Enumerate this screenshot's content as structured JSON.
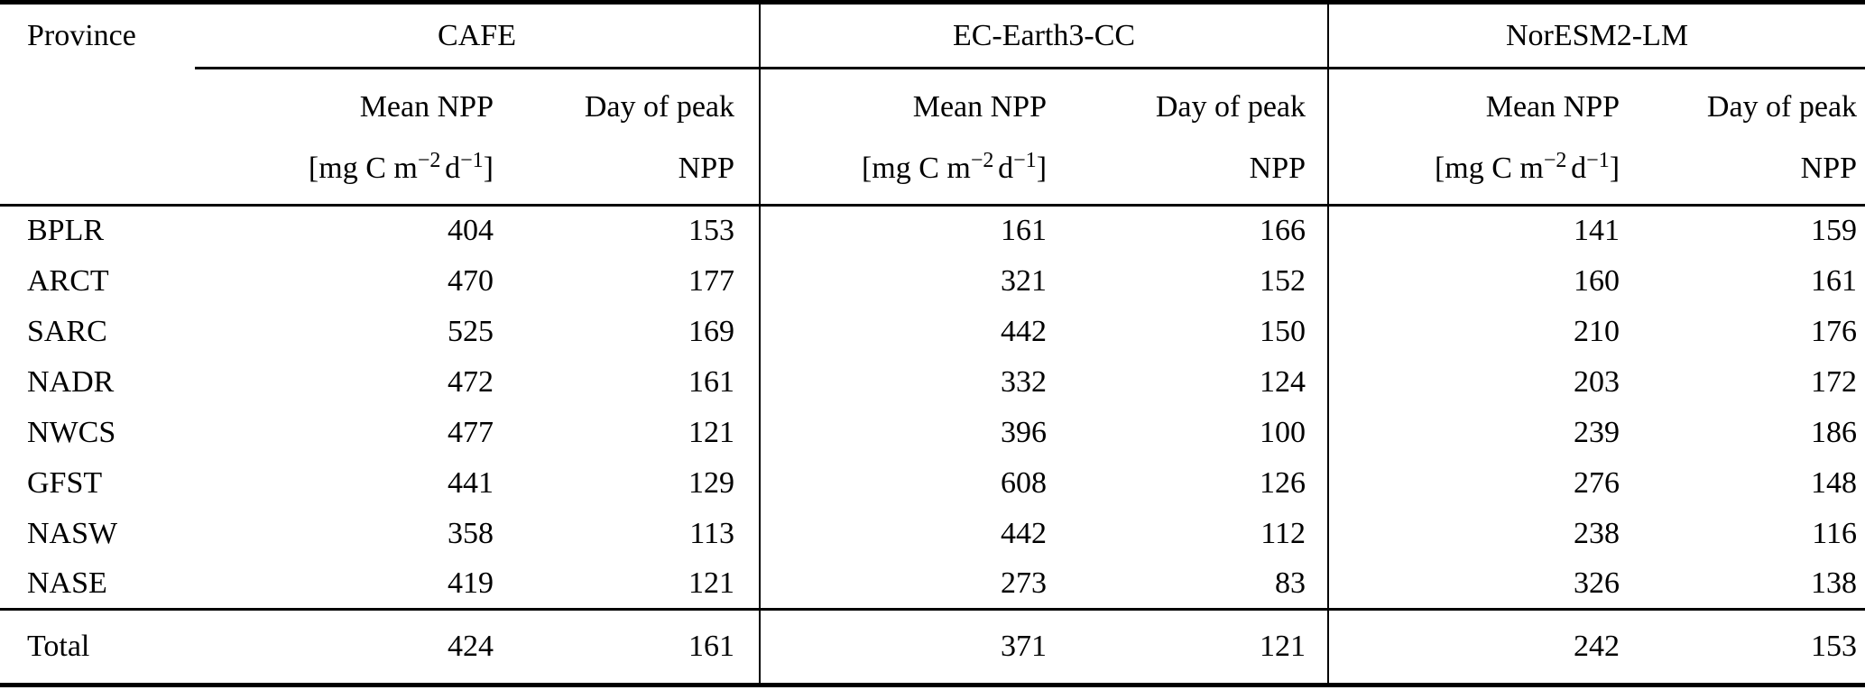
{
  "table": {
    "province_header": "Province",
    "groups": [
      {
        "name": "CAFE"
      },
      {
        "name": "EC-Earth3-CC"
      },
      {
        "name": "NorESM2-LM"
      }
    ],
    "subheader": {
      "mean_label": "Mean NPP",
      "day_peak_line1": "Day of peak",
      "day_peak_line2": "NPP",
      "unit_open": "[mg C m",
      "unit_exp1": "−2",
      "unit_d": "d",
      "unit_exp2": "−1",
      "unit_close": "]"
    },
    "rows": [
      {
        "province": "BPLR",
        "values": [
          "404",
          "153",
          "161",
          "166",
          "141",
          "159"
        ]
      },
      {
        "province": "ARCT",
        "values": [
          "470",
          "177",
          "321",
          "152",
          "160",
          "161"
        ]
      },
      {
        "province": "SARC",
        "values": [
          "525",
          "169",
          "442",
          "150",
          "210",
          "176"
        ]
      },
      {
        "province": "NADR",
        "values": [
          "472",
          "161",
          "332",
          "124",
          "203",
          "172"
        ]
      },
      {
        "province": "NWCS",
        "values": [
          "477",
          "121",
          "396",
          "100",
          "239",
          "186"
        ]
      },
      {
        "province": "GFST",
        "values": [
          "441",
          "129",
          "608",
          "126",
          "276",
          "148"
        ]
      },
      {
        "province": "NASW",
        "values": [
          "358",
          "113",
          "442",
          "112",
          "238",
          "116"
        ]
      },
      {
        "province": "NASE",
        "values": [
          "419",
          "121",
          "273",
          "83",
          "326",
          "138"
        ]
      }
    ],
    "total_row": {
      "label": "Total",
      "values": [
        "424",
        "161",
        "371",
        "121",
        "242",
        "153"
      ]
    },
    "colors": {
      "text": "#000000",
      "rules": "#000000",
      "background": "#ffffff"
    }
  }
}
